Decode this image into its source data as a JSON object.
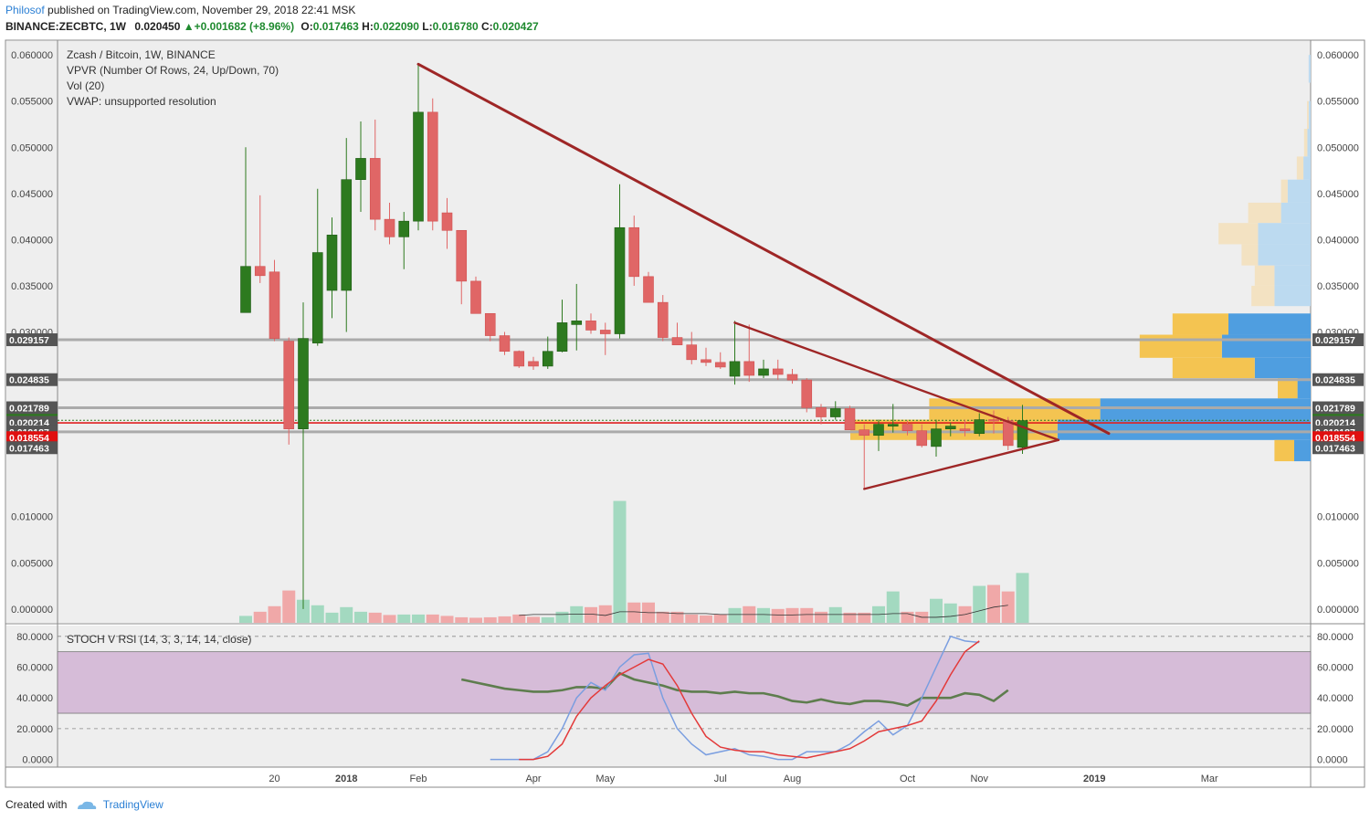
{
  "header": {
    "author": "Philosof",
    "published_text": "published on TradingView.com, November 29, 2018 22:41 MSK",
    "symbol_line": "BINANCE:ZECBTC, 1W",
    "last": "0.020450",
    "change": "+0.001682 (+8.96%)",
    "o_label": "O:",
    "o": "0.017463",
    "h_label": "H:",
    "h": "0.022090",
    "l_label": "L:",
    "l": "0.016780",
    "c_label": "C:",
    "c": "0.020427"
  },
  "legend": {
    "title": "Zcash / Bitcoin, 1W, BINANCE",
    "vpvr": "VPVR (Number Of Rows, 24, Up/Down, 70)",
    "vol": "Vol (20)",
    "vwap": "VWAP: unsupported resolution",
    "stoch": "STOCH V RSI (14, 3, 3, 14, 14, close)"
  },
  "footer": {
    "created_with": "Created with",
    "brand": "TradingView"
  },
  "colors": {
    "up": "#2d7a1f",
    "down": "#e06666",
    "vol_up": "#a3d9c0",
    "vol_down": "#f0a8a8",
    "trendline": "#9e2626",
    "support_red": "#e02020",
    "level_grey": "#aaaaaa",
    "stoch_band": "#d6bcd8",
    "stoch_k": "#7a9ee0",
    "stoch_d": "#e33a3a",
    "stoch_rsi": "#5e7d4e",
    "vpvr_up": "#f4c451",
    "vpvr_down": "#4f9ee0",
    "vpvr_up_light": "#f3e2c2",
    "vpvr_down_light": "#bcdaf0"
  },
  "chart_data": {
    "type": "candlestick",
    "price_axis": {
      "ticks": [
        "0.060000",
        "0.055000",
        "0.050000",
        "0.045000",
        "0.040000",
        "0.035000",
        "0.030000",
        "0.010000",
        "0.005000",
        "0.000000"
      ],
      "ylim": [
        -0.0015,
        0.0615
      ]
    },
    "level_labels": [
      {
        "value": 0.029157,
        "label": "0.029157",
        "color": "#555555"
      },
      {
        "value": 0.024835,
        "label": "0.024835",
        "color": "#555555"
      },
      {
        "value": 0.021789,
        "label": "0.021789",
        "color": "#555555"
      },
      {
        "value": 0.020427,
        "label": "0.020427",
        "color": "#2d7a1f"
      },
      {
        "value": 0.020214,
        "label": "0.020214",
        "color": "#555555"
      },
      {
        "value": 0.019187,
        "label": "0.019187",
        "color": "#555555"
      },
      {
        "value": 0.018554,
        "label": "0.018554",
        "color": "#e01010"
      },
      {
        "value": 0.017463,
        "label": "0.017463",
        "color": "#555555"
      }
    ],
    "time_axis": [
      "20",
      "2018",
      "Feb",
      "Apr",
      "May",
      "Jul",
      "Aug",
      "Oct",
      "Nov",
      "2019",
      "Mar"
    ],
    "candles": [
      {
        "o": 0.0321,
        "h": 0.05,
        "l": 0.0321,
        "c": 0.0371
      },
      {
        "o": 0.0371,
        "h": 0.0448,
        "l": 0.0353,
        "c": 0.0361
      },
      {
        "o": 0.0365,
        "h": 0.0378,
        "l": 0.029,
        "c": 0.0293
      },
      {
        "o": 0.029,
        "h": 0.0294,
        "l": 0.0178,
        "c": 0.0195
      },
      {
        "o": 0.0195,
        "h": 0.0332,
        "l": 0.0,
        "c": 0.0293
      },
      {
        "o": 0.0288,
        "h": 0.0455,
        "l": 0.0285,
        "c": 0.0386
      },
      {
        "o": 0.0345,
        "h": 0.0424,
        "l": 0.0315,
        "c": 0.0405
      },
      {
        "o": 0.0345,
        "h": 0.051,
        "l": 0.03,
        "c": 0.0465
      },
      {
        "o": 0.0465,
        "h": 0.0528,
        "l": 0.043,
        "c": 0.0488
      },
      {
        "o": 0.0488,
        "h": 0.053,
        "l": 0.041,
        "c": 0.0422
      },
      {
        "o": 0.0422,
        "h": 0.044,
        "l": 0.0395,
        "c": 0.0403
      },
      {
        "o": 0.0403,
        "h": 0.043,
        "l": 0.0368,
        "c": 0.042
      },
      {
        "o": 0.042,
        "h": 0.059,
        "l": 0.041,
        "c": 0.0538
      },
      {
        "o": 0.0538,
        "h": 0.0553,
        "l": 0.041,
        "c": 0.042
      },
      {
        "o": 0.0429,
        "h": 0.0445,
        "l": 0.039,
        "c": 0.041
      },
      {
        "o": 0.041,
        "h": 0.041,
        "l": 0.033,
        "c": 0.0355
      },
      {
        "o": 0.0355,
        "h": 0.036,
        "l": 0.032,
        "c": 0.032
      },
      {
        "o": 0.032,
        "h": 0.032,
        "l": 0.029,
        "c": 0.0296
      },
      {
        "o": 0.0296,
        "h": 0.03,
        "l": 0.0275,
        "c": 0.0279
      },
      {
        "o": 0.0279,
        "h": 0.028,
        "l": 0.0261,
        "c": 0.0263
      },
      {
        "o": 0.0268,
        "h": 0.0273,
        "l": 0.0259,
        "c": 0.0263
      },
      {
        "o": 0.0263,
        "h": 0.0295,
        "l": 0.026,
        "c": 0.0279
      },
      {
        "o": 0.0279,
        "h": 0.0335,
        "l": 0.0278,
        "c": 0.031
      },
      {
        "o": 0.0308,
        "h": 0.0352,
        "l": 0.028,
        "c": 0.0312
      },
      {
        "o": 0.0312,
        "h": 0.032,
        "l": 0.0298,
        "c": 0.0302
      },
      {
        "o": 0.0302,
        "h": 0.031,
        "l": 0.0275,
        "c": 0.0298
      },
      {
        "o": 0.0298,
        "h": 0.046,
        "l": 0.0293,
        "c": 0.0413
      },
      {
        "o": 0.0413,
        "h": 0.0426,
        "l": 0.035,
        "c": 0.036
      },
      {
        "o": 0.036,
        "h": 0.0365,
        "l": 0.0335,
        "c": 0.0332
      },
      {
        "o": 0.0332,
        "h": 0.034,
        "l": 0.029,
        "c": 0.0294
      },
      {
        "o": 0.0294,
        "h": 0.031,
        "l": 0.0286,
        "c": 0.0286
      },
      {
        "o": 0.0286,
        "h": 0.03,
        "l": 0.0265,
        "c": 0.027
      },
      {
        "o": 0.027,
        "h": 0.0283,
        "l": 0.0263,
        "c": 0.0267
      },
      {
        "o": 0.0267,
        "h": 0.0278,
        "l": 0.026,
        "c": 0.0262
      },
      {
        "o": 0.0252,
        "h": 0.0312,
        "l": 0.0243,
        "c": 0.0268
      },
      {
        "o": 0.0268,
        "h": 0.0308,
        "l": 0.0246,
        "c": 0.0253
      },
      {
        "o": 0.0253,
        "h": 0.027,
        "l": 0.025,
        "c": 0.026
      },
      {
        "o": 0.026,
        "h": 0.027,
        "l": 0.0248,
        "c": 0.0254
      },
      {
        "o": 0.0254,
        "h": 0.026,
        "l": 0.0244,
        "c": 0.0248
      },
      {
        "o": 0.0248,
        "h": 0.025,
        "l": 0.0213,
        "c": 0.0218
      },
      {
        "o": 0.0218,
        "h": 0.0222,
        "l": 0.02,
        "c": 0.0208
      },
      {
        "o": 0.0208,
        "h": 0.0225,
        "l": 0.0205,
        "c": 0.0217
      },
      {
        "o": 0.0217,
        "h": 0.022,
        "l": 0.0195,
        "c": 0.0194
      },
      {
        "o": 0.0194,
        "h": 0.02,
        "l": 0.013,
        "c": 0.0188
      },
      {
        "o": 0.0188,
        "h": 0.0205,
        "l": 0.0171,
        "c": 0.02
      },
      {
        "o": 0.0198,
        "h": 0.0222,
        "l": 0.0191,
        "c": 0.02
      },
      {
        "o": 0.02,
        "h": 0.0204,
        "l": 0.0188,
        "c": 0.0193
      },
      {
        "o": 0.0193,
        "h": 0.02,
        "l": 0.0175,
        "c": 0.0177
      },
      {
        "o": 0.0176,
        "h": 0.0205,
        "l": 0.0165,
        "c": 0.0195
      },
      {
        "o": 0.0195,
        "h": 0.0202,
        "l": 0.0187,
        "c": 0.0198
      },
      {
        "o": 0.0195,
        "h": 0.0205,
        "l": 0.0187,
        "c": 0.0193
      },
      {
        "o": 0.019,
        "h": 0.0212,
        "l": 0.0187,
        "c": 0.0205
      },
      {
        "o": 0.0205,
        "h": 0.0215,
        "l": 0.019,
        "c": 0.0204
      },
      {
        "o": 0.0204,
        "h": 0.0208,
        "l": 0.0172,
        "c": 0.0177
      },
      {
        "o": 0.0175,
        "h": 0.0221,
        "l": 0.0168,
        "c": 0.0204
      }
    ],
    "volume_ma_start_index": 19,
    "volume_ma_values": [
      0.0008,
      0.0009,
      0.0009,
      0.0009,
      0.00095,
      0.00095,
      0.0008,
      0.0012,
      0.0012,
      0.0011,
      0.0011,
      0.001,
      0.001,
      0.001,
      0.0009,
      0.0009,
      0.0009,
      0.0009,
      0.00085,
      0.00085,
      0.0009,
      0.0009,
      0.0009,
      0.0009,
      0.0009,
      0.0009,
      0.001,
      0.001,
      0.0006,
      0.0006,
      0.0007,
      0.0009,
      0.0013,
      0.0017,
      0.0019
    ],
    "volume": [
      0.00075,
      0.0012,
      0.0018,
      0.0035,
      0.0025,
      0.0019,
      0.0011,
      0.0017,
      0.0012,
      0.0011,
      0.00085,
      0.0009,
      0.0009,
      0.0009,
      0.00075,
      0.0006,
      0.00055,
      0.0006,
      0.0007,
      0.0009,
      0.00065,
      0.0006,
      0.0012,
      0.0018,
      0.0017,
      0.0019,
      0.0132,
      0.0022,
      0.0022,
      0.0012,
      0.0012,
      0.0009,
      0.0008,
      0.0009,
      0.0016,
      0.0018,
      0.0016,
      0.0015,
      0.0016,
      0.0016,
      0.0012,
      0.0017,
      0.0011,
      0.0011,
      0.0018,
      0.0034,
      0.0012,
      0.0012,
      0.0026,
      0.0021,
      0.0018,
      0.004,
      0.0041,
      0.0034,
      0.0054
    ],
    "trendlines": [
      {
        "name": "main-descending",
        "from": [
          12,
          0.059
        ],
        "to": [
          60,
          0.019
        ],
        "color": "#9e2626",
        "width": 3
      },
      {
        "name": "upper-wedge",
        "from": [
          34,
          0.031
        ],
        "to": [
          56.5,
          0.0183
        ],
        "color": "#9e2626",
        "width": 2.4
      },
      {
        "name": "lower-wedge",
        "from": [
          43,
          0.013
        ],
        "to": [
          56.5,
          0.0183
        ],
        "color": "#9e2626",
        "width": 2.4
      }
    ],
    "vpvr": [
      {
        "price_lo": 0.057,
        "price_hi": 0.06,
        "up": 0.0,
        "down": 0.0006,
        "light": true
      },
      {
        "price_lo": 0.052,
        "price_hi": 0.055,
        "up": 0.0005,
        "down": 0.0006,
        "light": true
      },
      {
        "price_lo": 0.049,
        "price_hi": 0.052,
        "up": 0.001,
        "down": 0.001,
        "light": true
      },
      {
        "price_lo": 0.0465,
        "price_hi": 0.049,
        "up": 0.002,
        "down": 0.0022,
        "light": true
      },
      {
        "price_lo": 0.044,
        "price_hi": 0.0465,
        "up": 0.002,
        "down": 0.007,
        "light": true
      },
      {
        "price_lo": 0.0418,
        "price_hi": 0.044,
        "up": 0.01,
        "down": 0.009,
        "light": true
      },
      {
        "price_lo": 0.0395,
        "price_hi": 0.0418,
        "up": 0.012,
        "down": 0.016,
        "light": true
      },
      {
        "price_lo": 0.0372,
        "price_hi": 0.0395,
        "up": 0.005,
        "down": 0.016,
        "light": true
      },
      {
        "price_lo": 0.035,
        "price_hi": 0.0372,
        "up": 0.006,
        "down": 0.011,
        "light": true
      },
      {
        "price_lo": 0.0328,
        "price_hi": 0.035,
        "up": 0.007,
        "down": 0.011,
        "light": true
      },
      {
        "price_lo": 0.0297,
        "price_hi": 0.032,
        "up": 0.017,
        "down": 0.025,
        "light": false
      },
      {
        "price_lo": 0.0272,
        "price_hi": 0.0297,
        "up": 0.025,
        "down": 0.027,
        "light": false
      },
      {
        "price_lo": 0.025,
        "price_hi": 0.0272,
        "up": 0.025,
        "down": 0.017,
        "light": false
      },
      {
        "price_lo": 0.0228,
        "price_hi": 0.025,
        "up": 0.006,
        "down": 0.004,
        "light": false
      },
      {
        "price_lo": 0.0205,
        "price_hi": 0.0228,
        "up": 0.052,
        "down": 0.064,
        "light": false
      },
      {
        "price_lo": 0.0183,
        "price_hi": 0.0205,
        "up": 0.063,
        "down": 0.077,
        "light": false
      },
      {
        "price_lo": 0.016,
        "price_hi": 0.0183,
        "up": 0.006,
        "down": 0.005,
        "light": false
      }
    ],
    "stoch": {
      "ticks": [
        "80.0000",
        "60.0000",
        "40.0000",
        "20.0000",
        "0.0000"
      ],
      "ylim": [
        -5,
        87
      ],
      "band": [
        30,
        70
      ],
      "dashed": [
        80,
        20
      ],
      "k_start_index": 17,
      "k": [
        0,
        0,
        0,
        0,
        5,
        20,
        40,
        50,
        45,
        60,
        68,
        69,
        40,
        20,
        10,
        3,
        5,
        7,
        3,
        2,
        0,
        0,
        5,
        5,
        5,
        10,
        18,
        25,
        16,
        22,
        40,
        60,
        80,
        77,
        76
      ],
      "d_start_index": 19,
      "d": [
        0,
        0,
        2,
        10,
        28,
        40,
        48,
        55,
        60,
        65,
        62,
        48,
        30,
        15,
        8,
        6,
        5,
        5,
        3,
        2,
        1,
        3,
        5,
        7,
        12,
        18,
        20,
        22,
        25,
        38,
        55,
        70,
        77
      ],
      "rsi_start_index": 15,
      "rsi": [
        52,
        50,
        48,
        46,
        45,
        44,
        44,
        45,
        47,
        47,
        46,
        56,
        52,
        50,
        48,
        45,
        44,
        44,
        43,
        44,
        43,
        43,
        41,
        38,
        37,
        39,
        37,
        36,
        38,
        38,
        37,
        35,
        40,
        40,
        40,
        43,
        42,
        38,
        45
      ]
    }
  }
}
